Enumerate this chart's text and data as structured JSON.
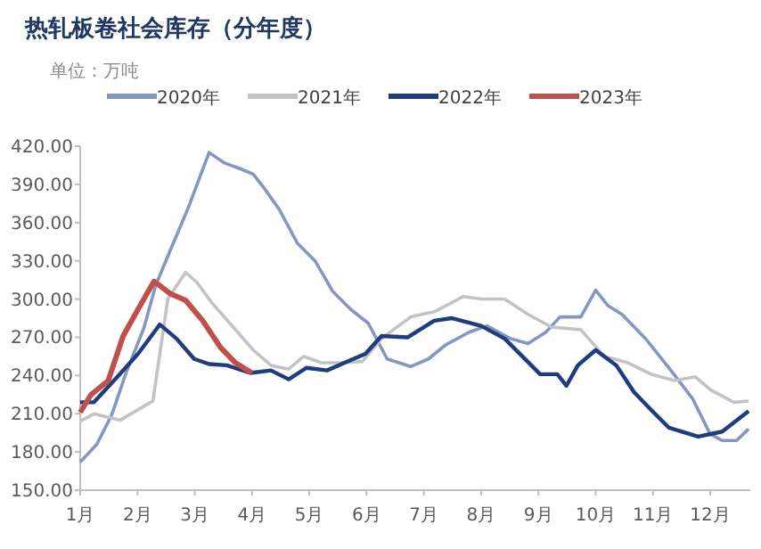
{
  "chart_data": {
    "type": "line",
    "title": "热轧板卷社会库存（分年度）",
    "subtitle": "单位：万吨",
    "legend": "top",
    "grid": false,
    "line_style": "solid",
    "xlim": [
      1,
      12.7
    ],
    "xticks": [
      {
        "value": 1,
        "label": "1月"
      },
      {
        "value": 2,
        "label": "2月"
      },
      {
        "value": 3,
        "label": "3月"
      },
      {
        "value": 4,
        "label": "4月"
      },
      {
        "value": 5,
        "label": "5月"
      },
      {
        "value": 6,
        "label": "6月"
      },
      {
        "value": 7,
        "label": "7月"
      },
      {
        "value": 8,
        "label": "8月"
      },
      {
        "value": 9,
        "label": "9月"
      },
      {
        "value": 10,
        "label": "10月"
      },
      {
        "value": 11,
        "label": "11月"
      },
      {
        "value": 12,
        "label": "12月"
      }
    ],
    "ylim": [
      150,
      420
    ],
    "yticks": [
      {
        "value": 150,
        "label": "150.00"
      },
      {
        "value": 180,
        "label": "180.00"
      },
      {
        "value": 210,
        "label": "210.00"
      },
      {
        "value": 240,
        "label": "240.00"
      },
      {
        "value": 270,
        "label": "270.00"
      },
      {
        "value": 300,
        "label": "300.00"
      },
      {
        "value": 330,
        "label": "330.00"
      },
      {
        "value": 360,
        "label": "360.00"
      },
      {
        "value": 390,
        "label": "390.00"
      },
      {
        "value": 420,
        "label": "420.00"
      }
    ],
    "series": [
      {
        "name": "2020年",
        "color": "#8497c2",
        "x": [
          1.0,
          1.29,
          1.55,
          1.8,
          2.11,
          2.32,
          2.58,
          2.89,
          3.25,
          3.51,
          3.81,
          4.02,
          4.23,
          4.48,
          4.79,
          5.1,
          5.41,
          5.72,
          6.03,
          6.36,
          6.77,
          7.08,
          7.38,
          7.79,
          8.1,
          8.51,
          8.82,
          9.13,
          9.38,
          9.74,
          10.0,
          10.21,
          10.46,
          10.87,
          11.28,
          11.69,
          12.0,
          12.21,
          12.46,
          12.67
        ],
        "values": [
          172,
          186,
          209,
          242,
          277,
          311,
          339,
          372,
          415,
          407,
          402,
          398,
          386,
          370,
          344,
          330,
          306,
          292,
          281,
          253,
          247,
          253,
          264,
          274,
          279,
          269,
          265,
          274,
          286,
          286,
          307,
          295,
          288,
          269,
          246,
          222,
          194,
          189,
          189,
          198
        ]
      },
      {
        "name": "2021年",
        "color": "#c3c3c3",
        "x": [
          1.0,
          1.24,
          1.7,
          2.27,
          2.53,
          2.84,
          3.04,
          3.3,
          3.71,
          4.02,
          4.33,
          4.64,
          4.9,
          5.21,
          5.57,
          5.93,
          6.26,
          6.77,
          7.18,
          7.69,
          8.0,
          8.41,
          8.82,
          9.23,
          9.74,
          10.15,
          10.56,
          10.97,
          11.38,
          11.74,
          12.0,
          12.41,
          12.67
        ],
        "values": [
          204,
          210,
          205,
          220,
          300,
          321,
          313,
          297,
          276,
          260,
          248,
          245,
          255,
          250,
          250,
          251,
          269,
          286,
          290,
          302,
          300,
          300,
          288,
          278,
          276,
          255,
          250,
          241,
          236,
          239,
          229,
          219,
          220
        ]
      },
      {
        "name": "2022年",
        "color": "#1f3c7c",
        "x": [
          1.0,
          1.24,
          1.65,
          2.01,
          2.29,
          2.39,
          2.68,
          2.99,
          3.25,
          3.56,
          3.97,
          4.33,
          4.64,
          4.95,
          5.31,
          5.67,
          5.98,
          6.26,
          6.72,
          7.18,
          7.49,
          8.0,
          8.41,
          8.72,
          9.03,
          9.33,
          9.49,
          9.69,
          10.0,
          10.36,
          10.67,
          10.97,
          11.28,
          11.79,
          12.21,
          12.67
        ],
        "values": [
          219,
          219,
          239,
          257,
          274,
          280,
          269,
          253,
          249,
          248,
          242,
          244,
          237,
          246,
          244,
          251,
          257,
          271,
          270,
          283,
          285,
          279,
          269,
          255,
          241,
          241,
          232,
          248,
          260,
          248,
          227,
          213,
          199,
          192,
          196,
          212
        ]
      },
      {
        "name": "2023年",
        "color": "#c0504d",
        "x": [
          1.0,
          1.19,
          1.49,
          1.75,
          2.01,
          2.29,
          2.58,
          2.84,
          3.14,
          3.45,
          3.71,
          4.0
        ],
        "values": [
          211,
          225,
          236,
          271,
          292,
          314,
          304,
          299,
          283,
          262,
          250,
          242
        ]
      }
    ]
  }
}
